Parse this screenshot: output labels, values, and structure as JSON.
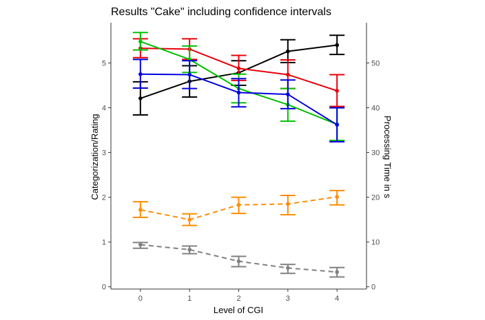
{
  "chart_data": {
    "type": "line",
    "title": "Results \"Cake\" including confidence intervals",
    "xlabel": "Level of CGI",
    "ylabel": "Categorization/Rating",
    "y2label": "Processing Time in s",
    "x": [
      0,
      1,
      2,
      3,
      4
    ],
    "xlim": [
      -0.6,
      4.6
    ],
    "ylim": [
      -0.05,
      5.9
    ],
    "y2lim": [
      -0.5,
      59
    ],
    "x_ticks": [
      "0",
      "1",
      "2",
      "3",
      "4"
    ],
    "y_ticks": [
      "0",
      "1",
      "2",
      "3",
      "4",
      "5"
    ],
    "y2_ticks": [
      "0",
      "10",
      "20",
      "30",
      "40",
      "50"
    ],
    "grid": false,
    "series": [
      {
        "axis": "left",
        "color": "#000000",
        "dash": "solid",
        "values": [
          4.21,
          4.59,
          4.78,
          5.26,
          5.4
        ],
        "lower": [
          3.84,
          4.24,
          4.5,
          5.01,
          5.19
        ],
        "upper": [
          4.58,
          4.94,
          5.05,
          5.52,
          5.62
        ]
      },
      {
        "axis": "left",
        "color": "#e8000b",
        "dash": "solid",
        "values": [
          5.33,
          5.31,
          4.88,
          4.74,
          4.38
        ],
        "lower": [
          5.12,
          5.08,
          4.61,
          4.43,
          4.03
        ],
        "upper": [
          5.54,
          5.54,
          5.17,
          5.07,
          4.74
        ]
      },
      {
        "axis": "left",
        "color": "#00c000",
        "dash": "solid",
        "values": [
          5.48,
          5.08,
          4.43,
          4.07,
          3.63
        ],
        "lower": [
          5.29,
          4.79,
          4.11,
          3.7,
          3.27
        ],
        "upper": [
          5.68,
          5.38,
          4.75,
          4.43,
          4.0
        ]
      },
      {
        "axis": "left",
        "color": "#0000e0",
        "dash": "solid",
        "values": [
          4.75,
          4.74,
          4.34,
          4.3,
          3.62
        ],
        "lower": [
          4.44,
          4.43,
          4.02,
          3.98,
          3.24
        ],
        "upper": [
          5.08,
          5.05,
          4.65,
          4.62,
          4.0
        ]
      },
      {
        "axis": "right",
        "color": "#ff8c00",
        "dash": "dashed",
        "values": [
          17.2,
          15.0,
          18.3,
          18.5,
          20.1
        ],
        "lower": [
          15.5,
          13.7,
          16.4,
          16.1,
          18.3
        ],
        "upper": [
          19.0,
          16.3,
          20.0,
          20.4,
          21.5
        ]
      },
      {
        "axis": "right",
        "color": "#808080",
        "dash": "dashed",
        "values": [
          9.4,
          8.3,
          5.7,
          4.2,
          3.3
        ],
        "lower": [
          8.6,
          7.4,
          4.5,
          3.0,
          2.2
        ],
        "upper": [
          9.9,
          9.1,
          6.8,
          5.0,
          4.3
        ]
      }
    ]
  }
}
